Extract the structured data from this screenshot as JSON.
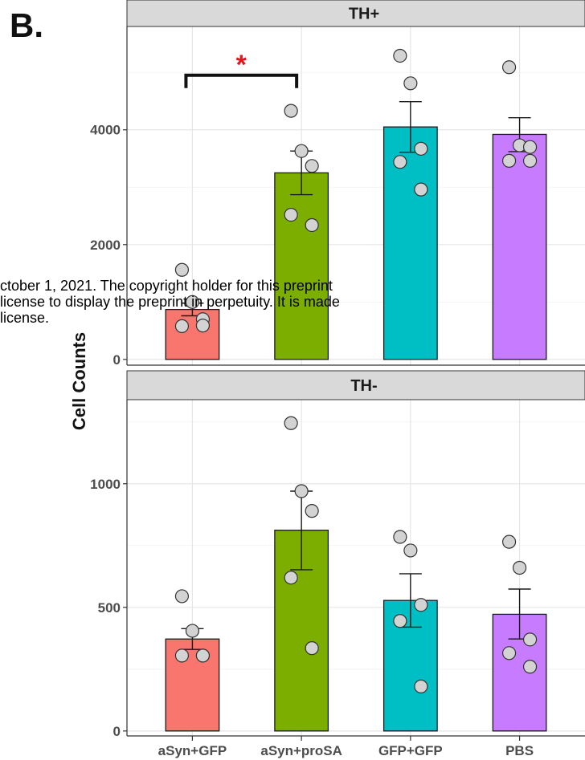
{
  "panel_label": "B.",
  "watermark": {
    "line1": "ctober 1, 2021. The copyright holder for this preprint",
    "line2": "license to display the preprint in perpetuity. It is made",
    "line3": "license."
  },
  "chart_data": {
    "type": "bar",
    "ylabel": "Cell Counts",
    "categories": [
      "aSyn+GFP",
      "aSyn+proSA",
      "GFP+GFP",
      "PBS"
    ],
    "colors": [
      "#f8766d",
      "#7cae00",
      "#00bfc4",
      "#c77cff"
    ],
    "facets": [
      {
        "title": "TH+",
        "ylim": [
          -100,
          5800
        ],
        "yticks": [
          0,
          2000,
          4000
        ],
        "values": [
          870,
          3250,
          4050,
          3920
        ],
        "error": [
          [
            760,
            980
          ],
          [
            2870,
            3630
          ],
          [
            3610,
            4490
          ],
          [
            3620,
            4210
          ]
        ],
        "points": [
          [
            1560,
            1000,
            700,
            580,
            590
          ],
          [
            4330,
            3630,
            3370,
            2520,
            2340
          ],
          [
            5290,
            4810,
            3670,
            3440,
            2960
          ],
          [
            5090,
            3730,
            3700,
            3460,
            3460
          ]
        ],
        "significance": {
          "from": 0,
          "to": 1,
          "label": "*",
          "y": 4950
        }
      },
      {
        "title": "TH-",
        "ylim": [
          -20,
          1340
        ],
        "yticks": [
          0,
          500,
          1000
        ],
        "values": [
          372,
          812,
          528,
          472
        ],
        "error": [
          [
            330,
            414
          ],
          [
            652,
            970
          ],
          [
            420,
            636
          ],
          [
            372,
            574
          ]
        ],
        "points": [
          [
            545,
            405,
            305,
            305,
            305
          ],
          [
            1245,
            970,
            890,
            620,
            335
          ],
          [
            785,
            730,
            510,
            445,
            180
          ],
          [
            765,
            660,
            370,
            315,
            260
          ]
        ]
      }
    ]
  }
}
